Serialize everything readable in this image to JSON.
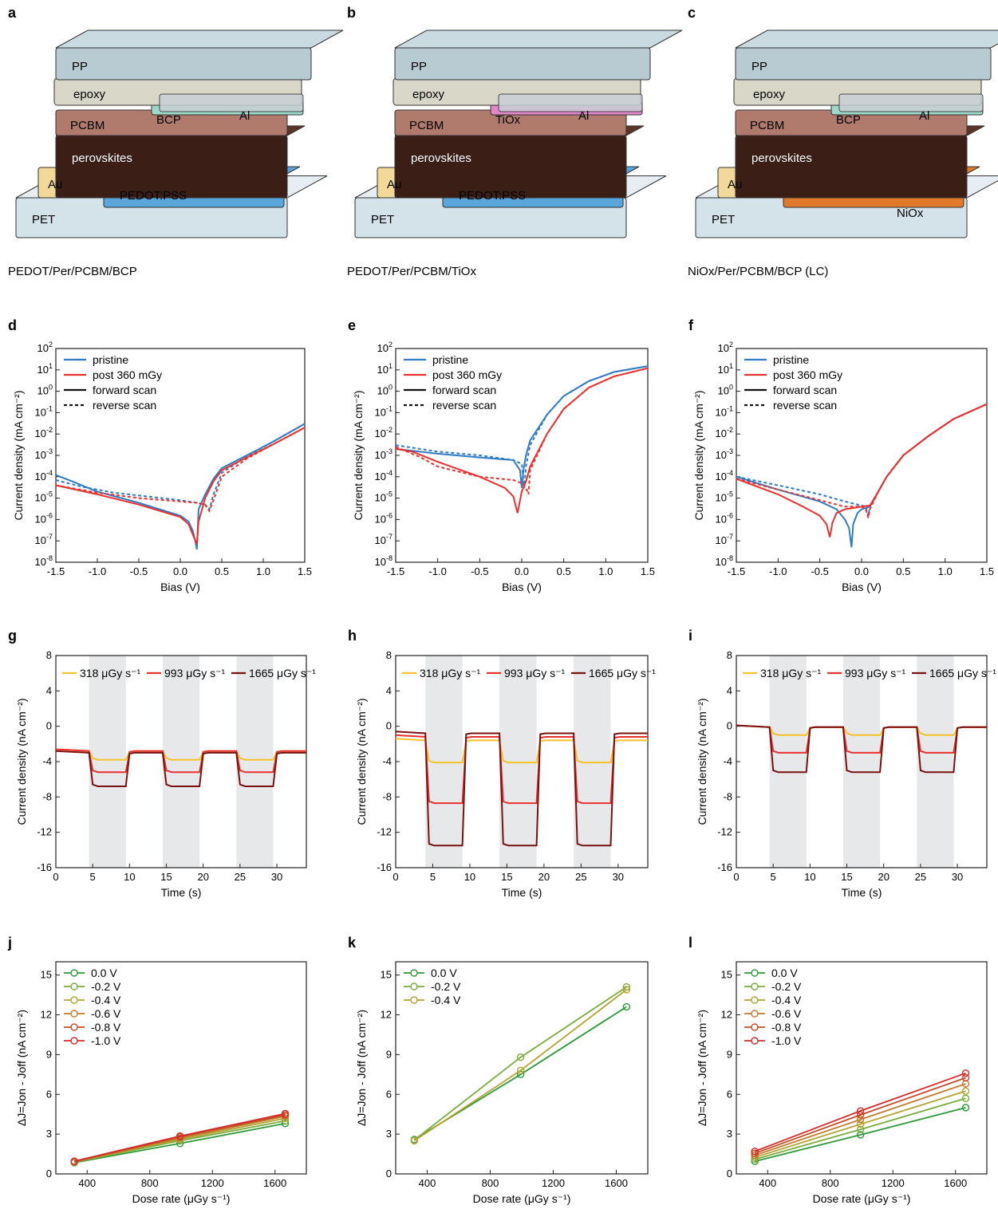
{
  "stacks": [
    {
      "panel": "a",
      "layers": {
        "PP": "PP",
        "epoxy": "epoxy",
        "etl2": "BCP",
        "Al": "Al",
        "PCBM": "PCBM",
        "perov": "perovskites",
        "Au": "Au",
        "htl": "PEDOT:PSS",
        "PET": "PET"
      },
      "caption": "PEDOT/Per/PCBM/BCP",
      "colors": {
        "etl2": "#9fd8c8",
        "htl": "#5aa6db"
      }
    },
    {
      "panel": "b",
      "layers": {
        "PP": "PP",
        "epoxy": "epoxy",
        "etl2": "TiOx",
        "Al": "Al",
        "PCBM": "PCBM",
        "perov": "perovskites",
        "Au": "Au",
        "htl": "PEDOT:PSS",
        "PET": "PET"
      },
      "caption": "PEDOT/Per/PCBM/TiOx",
      "colors": {
        "etl2": "#e088c8",
        "htl": "#5aa6db"
      }
    },
    {
      "panel": "c",
      "layers": {
        "PP": "PP",
        "epoxy": "epoxy",
        "etl2": "BCP",
        "Al": "Al",
        "PCBM": "PCBM",
        "perov": "perovskites",
        "Au": "Au",
        "htl": "NiOx",
        "PET": "PET"
      },
      "caption": "NiOx/Per/PCBM/BCP (LC)",
      "colors": {
        "etl2": "#9fd8c8",
        "htl": "#e07a2a"
      }
    }
  ],
  "colors": {
    "blue": "#2f7bc4",
    "red": "#e8312f",
    "yellow": "#f6c12a",
    "darkred": "#7a1111",
    "shade": "#e6e8ea"
  },
  "chart_data": [
    {
      "panel": "d",
      "type": "line",
      "xlabel": "Bias (V)",
      "ylabel": "Current density (mA cm⁻²)",
      "yscale": "log",
      "xlim": [
        -1.5,
        1.5
      ],
      "ylim": [
        1e-08,
        100
      ],
      "xticks": [
        "-1.5",
        "-1.0",
        "-0.5",
        "0.0",
        "0.5",
        "1.0",
        "1.5"
      ],
      "legend": [
        "pristine",
        "post 360 mGy",
        "forward scan",
        "reverse scan"
      ],
      "series": [
        {
          "name": "pristine",
          "scan": "forward",
          "x": [
            -1.5,
            -1.3,
            -1.0,
            -0.5,
            0.0,
            0.1,
            0.15,
            0.18,
            0.2,
            0.22,
            0.3,
            0.4,
            0.5,
            0.8,
            1.1,
            1.5
          ],
          "y": [
            0.00012,
            6e-05,
            2e-05,
            6e-06,
            1.5e-06,
            8e-07,
            3e-07,
            1e-07,
            4e-08,
            3e-06,
            1.5e-05,
            8e-05,
            0.00025,
            0.001,
            0.004,
            0.03
          ]
        },
        {
          "name": "pristine",
          "scan": "reverse",
          "x": [
            -1.5,
            -1.2,
            -0.8,
            -0.4,
            0.0,
            0.2,
            0.3,
            0.35,
            0.4,
            0.5,
            0.8,
            1.1,
            1.5
          ],
          "y": [
            7e-05,
            3.5e-05,
            1.8e-05,
            1.2e-05,
            8e-06,
            6e-06,
            5e-06,
            3e-06,
            1.5e-05,
            0.00015,
            0.0009,
            0.004,
            0.03
          ]
        },
        {
          "name": "post 360 mGy",
          "scan": "forward",
          "x": [
            -1.5,
            -1.0,
            -0.5,
            0.0,
            0.1,
            0.15,
            0.2,
            0.22,
            0.3,
            0.4,
            0.5,
            0.8,
            1.1,
            1.5
          ],
          "y": [
            4e-05,
            1.5e-05,
            5e-06,
            1.3e-06,
            6e-07,
            2e-07,
            7e-08,
            8e-07,
            1e-05,
            6e-05,
            0.0002,
            0.0008,
            0.003,
            0.02
          ]
        },
        {
          "name": "post 360 mGy",
          "scan": "reverse",
          "x": [
            -1.5,
            -1.0,
            -0.5,
            0.0,
            0.2,
            0.3,
            0.35,
            0.4,
            0.5,
            0.8,
            1.1,
            1.5
          ],
          "y": [
            4e-05,
            1.8e-05,
            1e-05,
            7e-06,
            6e-06,
            5e-06,
            2.5e-06,
            8e-06,
            0.0001,
            0.0007,
            0.003,
            0.02
          ]
        }
      ]
    },
    {
      "panel": "e",
      "type": "line",
      "xlabel": "Bias (V)",
      "ylabel": "Current density (mA cm⁻²)",
      "yscale": "log",
      "xlim": [
        -1.5,
        1.5
      ],
      "ylim": [
        1e-08,
        100
      ],
      "xticks": [
        "-1.5",
        "-1.0",
        "-0.5",
        "0.0",
        "0.5",
        "1.0",
        "1.5"
      ],
      "legend": [
        "pristine",
        "post 360 mGy",
        "forward scan",
        "reverse scan"
      ],
      "series": [
        {
          "name": "pristine",
          "scan": "forward",
          "x": [
            -1.5,
            -1.0,
            -0.5,
            -0.1,
            -0.02,
            0.0,
            0.02,
            0.05,
            0.1,
            0.3,
            0.5,
            0.8,
            1.1,
            1.5
          ],
          "y": [
            0.002,
            0.0012,
            0.0008,
            0.0006,
            0.0002,
            3e-05,
            0.0002,
            0.001,
            0.005,
            0.08,
            0.6,
            3.0,
            8.0,
            15.0
          ]
        },
        {
          "name": "pristine",
          "scan": "reverse",
          "x": [
            -1.5,
            -1.0,
            -0.5,
            -0.1,
            0.0,
            0.03,
            0.05,
            0.1,
            0.3,
            0.5,
            0.8,
            1.1,
            1.5
          ],
          "y": [
            0.003,
            0.0015,
            0.001,
            0.0006,
            0.0004,
            3e-05,
            0.0003,
            0.003,
            0.08,
            0.6,
            3.0,
            8.0,
            15.0
          ]
        },
        {
          "name": "post 360 mGy",
          "scan": "forward",
          "x": [
            -1.5,
            -1.3,
            -1.0,
            -0.5,
            -0.2,
            -0.1,
            -0.05,
            0.0,
            0.05,
            0.1,
            0.3,
            0.5,
            0.8,
            1.1,
            1.5
          ],
          "y": [
            0.002,
            0.0015,
            0.0005,
            0.0001,
            3e-05,
            1.2e-05,
            2e-06,
            2e-05,
            6e-05,
            0.0003,
            0.01,
            0.15,
            1.5,
            5.0,
            12.0
          ]
        },
        {
          "name": "post 360 mGy",
          "scan": "reverse",
          "x": [
            -1.5,
            -1.2,
            -1.0,
            -0.5,
            -0.1,
            0.0,
            0.05,
            0.08,
            0.1,
            0.3,
            0.5,
            0.8,
            1.1,
            1.5
          ],
          "y": [
            0.0025,
            0.0008,
            0.0003,
            0.0001,
            7e-05,
            5e-05,
            3e-05,
            1.5e-05,
            0.0002,
            0.01,
            0.15,
            1.5,
            5.0,
            12.0
          ]
        }
      ]
    },
    {
      "panel": "f",
      "type": "line",
      "xlabel": "Bias (V)",
      "ylabel": "Current density (mA cm⁻²)",
      "yscale": "log",
      "xlim": [
        -1.5,
        1.5
      ],
      "ylim": [
        1e-08,
        100
      ],
      "xticks": [
        "-1.5",
        "-1.0",
        "-0.5",
        "0.0",
        "0.5",
        "1.0",
        "1.5"
      ],
      "legend": [
        "pristine",
        "post 360 mGy",
        "forward scan",
        "reverse scan"
      ],
      "series": [
        {
          "name": "pristine",
          "scan": "forward",
          "x": [
            -1.5,
            -1.0,
            -0.5,
            -0.3,
            -0.2,
            -0.15,
            -0.12,
            -0.1,
            -0.05,
            0.0,
            0.1,
            0.2,
            0.3,
            0.5,
            0.8,
            1.1,
            1.5
          ],
          "y": [
            0.0001,
            2.5e-05,
            7e-06,
            3e-06,
            1e-06,
            4e-07,
            5e-08,
            6e-07,
            2e-06,
            3e-06,
            4e-06,
            2e-05,
            0.0001,
            0.001,
            0.008,
            0.05,
            0.25
          ]
        },
        {
          "name": "pristine",
          "scan": "reverse",
          "x": [
            -1.5,
            -1.0,
            -0.5,
            -0.2,
            0.0,
            0.05,
            0.08,
            0.1,
            0.2,
            0.3,
            0.5,
            0.8,
            1.1,
            1.5
          ],
          "y": [
            0.0001,
            4e-05,
            1.5e-05,
            7e-06,
            4.5e-06,
            4e-06,
            1.5e-06,
            4e-06,
            2e-05,
            0.0001,
            0.001,
            0.008,
            0.05,
            0.25
          ]
        },
        {
          "name": "post 360 mGy",
          "scan": "forward",
          "x": [
            -1.5,
            -1.0,
            -0.7,
            -0.5,
            -0.42,
            -0.38,
            -0.35,
            -0.3,
            -0.2,
            0.0,
            0.1,
            0.2,
            0.3,
            0.5,
            0.8,
            1.1,
            1.5
          ],
          "y": [
            8e-05,
            1.5e-05,
            4e-06,
            1.5e-06,
            6e-07,
            1.5e-07,
            7e-07,
            2e-06,
            3e-06,
            4e-06,
            4.5e-06,
            2e-05,
            0.0001,
            0.001,
            0.008,
            0.05,
            0.25
          ]
        },
        {
          "name": "post 360 mGy",
          "scan": "reverse",
          "x": [
            -1.5,
            -1.0,
            -0.5,
            -0.2,
            0.0,
            0.05,
            0.08,
            0.1,
            0.2,
            0.3,
            0.5,
            0.8,
            1.1,
            1.5
          ],
          "y": [
            8e-05,
            2.5e-05,
            8e-06,
            4e-06,
            4e-06,
            3e-06,
            1.2e-06,
            3e-06,
            2e-05,
            0.0001,
            0.001,
            0.008,
            0.05,
            0.25
          ]
        }
      ]
    },
    {
      "panel": "g",
      "type": "line",
      "xlabel": "Time (s)",
      "ylabel": "Current density (nA cm⁻²)",
      "xlim": [
        0,
        34
      ],
      "ylim": [
        -16,
        8
      ],
      "xticks": [
        "0",
        "5",
        "10",
        "15",
        "20",
        "25",
        "30"
      ],
      "yticks": [
        "-16",
        "-12",
        "-8",
        "-4",
        "0",
        "4",
        "8"
      ],
      "shaded": [
        [
          4.5,
          9.5
        ],
        [
          14.5,
          19.5
        ],
        [
          24.5,
          29.5
        ]
      ],
      "series": [
        {
          "name": "318 μGy s⁻¹",
          "base": -2.8,
          "on": -3.8
        },
        {
          "name": "993 μGy s⁻¹",
          "base": -2.8,
          "on": -5.2
        },
        {
          "name": "1665 μGy s⁻¹",
          "base": -3.0,
          "on": -6.8
        }
      ]
    },
    {
      "panel": "h",
      "type": "line",
      "xlabel": "Time (s)",
      "ylabel": "Current density (nA cm⁻²)",
      "xlim": [
        0,
        34
      ],
      "ylim": [
        -16,
        8
      ],
      "xticks": [
        "0",
        "5",
        "10",
        "15",
        "20",
        "25",
        "30"
      ],
      "yticks": [
        "-16",
        "-12",
        "-8",
        "-4",
        "0",
        "4",
        "8"
      ],
      "shaded": [
        [
          4,
          9
        ],
        [
          14,
          19
        ],
        [
          24,
          29
        ]
      ],
      "series": [
        {
          "name": "318 μGy s⁻¹",
          "base": -1.6,
          "on": -4.1
        },
        {
          "name": "993 μGy s⁻¹",
          "base": -1.2,
          "on": -8.7
        },
        {
          "name": "1665 μGy s⁻¹",
          "base": -0.8,
          "on": -13.5
        }
      ]
    },
    {
      "panel": "i",
      "type": "line",
      "xlabel": "Time (s)",
      "ylabel": "Current density (nA cm⁻²)",
      "xlim": [
        0,
        34
      ],
      "ylim": [
        -16,
        8
      ],
      "xticks": [
        "0",
        "5",
        "10",
        "15",
        "20",
        "25",
        "30"
      ],
      "yticks": [
        "-16",
        "-12",
        "-8",
        "-4",
        "0",
        "4",
        "8"
      ],
      "shaded": [
        [
          4.5,
          9.5
        ],
        [
          14.5,
          19.5
        ],
        [
          24.5,
          29.5
        ]
      ],
      "series": [
        {
          "name": "318 μGy s⁻¹",
          "base": -0.1,
          "on": -1.0
        },
        {
          "name": "993 μGy s⁻¹",
          "base": -0.1,
          "on": -3.0
        },
        {
          "name": "1665 μGy s⁻¹",
          "base": -0.1,
          "on": -5.2
        }
      ]
    },
    {
      "panel": "j",
      "type": "scatter",
      "xlabel": "Dose rate (μGy s⁻¹)",
      "ylabel": "ΔJ=Jon - Joff (nA cm⁻²)",
      "xlim": [
        200,
        1800
      ],
      "ylim": [
        0,
        16
      ],
      "xticks": [
        "400",
        "800",
        "1200",
        "1600"
      ],
      "yticks": [
        "0",
        "3",
        "6",
        "9",
        "12",
        "15"
      ],
      "x": [
        318,
        993,
        1665
      ],
      "series": [
        {
          "name": "0.0 V",
          "color": "#2e9a3a",
          "values": [
            0.85,
            2.3,
            3.8
          ]
        },
        {
          "name": "-0.2 V",
          "color": "#78ad3a",
          "values": [
            0.88,
            2.5,
            4.0
          ]
        },
        {
          "name": "-0.4 V",
          "color": "#b3a230",
          "values": [
            0.9,
            2.6,
            4.2
          ]
        },
        {
          "name": "-0.6 V",
          "color": "#c27a2a",
          "values": [
            0.92,
            2.7,
            4.35
          ]
        },
        {
          "name": "-0.8 V",
          "color": "#c44b25",
          "values": [
            0.94,
            2.8,
            4.45
          ]
        },
        {
          "name": "-1.0 V",
          "color": "#d62a2a",
          "values": [
            0.96,
            2.85,
            4.55
          ]
        }
      ]
    },
    {
      "panel": "k",
      "type": "scatter",
      "xlabel": "Dose rate (μGy s⁻¹)",
      "ylabel": "ΔJ=Jon - Joff (nA cm⁻²)",
      "xlim": [
        200,
        1800
      ],
      "ylim": [
        0,
        16
      ],
      "xticks": [
        "400",
        "800",
        "1200",
        "1600"
      ],
      "yticks": [
        "0",
        "3",
        "6",
        "9",
        "12",
        "15"
      ],
      "x": [
        318,
        993,
        1665
      ],
      "series": [
        {
          "name": "0.0 V",
          "color": "#2e9a3a",
          "values": [
            2.6,
            7.5,
            12.6
          ]
        },
        {
          "name": "-0.2 V",
          "color": "#78ad3a",
          "values": [
            2.55,
            8.8,
            14.1
          ]
        },
        {
          "name": "-0.4 V",
          "color": "#b3a230",
          "values": [
            2.5,
            7.8,
            13.9
          ]
        }
      ]
    },
    {
      "panel": "l",
      "type": "scatter",
      "xlabel": "Dose rate (μGy s⁻¹)",
      "ylabel": "ΔJ=Jon - Joff (nA cm⁻²)",
      "xlim": [
        200,
        1800
      ],
      "ylim": [
        0,
        16
      ],
      "xticks": [
        "400",
        "800",
        "1200",
        "1600"
      ],
      "yticks": [
        "0",
        "3",
        "6",
        "9",
        "12",
        "15"
      ],
      "x": [
        318,
        993,
        1665
      ],
      "series": [
        {
          "name": "0.0 V",
          "color": "#2e9a3a",
          "values": [
            0.95,
            2.95,
            5.0
          ]
        },
        {
          "name": "-0.2 V",
          "color": "#78ad3a",
          "values": [
            1.1,
            3.35,
            5.7
          ]
        },
        {
          "name": "-0.4 V",
          "color": "#b3a230",
          "values": [
            1.25,
            3.75,
            6.25
          ]
        },
        {
          "name": "-0.6 V",
          "color": "#c27a2a",
          "values": [
            1.4,
            4.1,
            6.8
          ]
        },
        {
          "name": "-0.8 V",
          "color": "#c44b25",
          "values": [
            1.55,
            4.45,
            7.25
          ]
        },
        {
          "name": "-1.0 V",
          "color": "#d62a2a",
          "values": [
            1.7,
            4.75,
            7.6
          ]
        }
      ]
    }
  ]
}
